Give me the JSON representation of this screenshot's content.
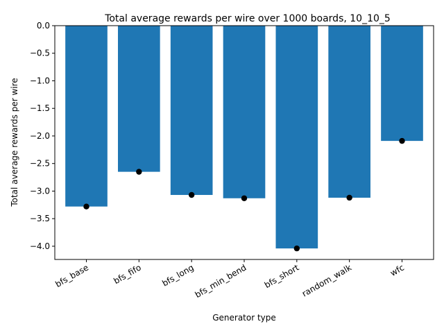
{
  "chart_data": {
    "type": "bar",
    "title": "Total average rewards per wire over 1000 boards, 10_10_5",
    "xlabel": "Generator type",
    "ylabel": "Total average rewards per wire",
    "categories": [
      "bfs_base",
      "bfs_fifo",
      "bfs_long",
      "bfs_min_bend",
      "bfs_short",
      "random_walk",
      "wfc"
    ],
    "values": [
      -3.28,
      -2.65,
      -3.07,
      -3.13,
      -4.04,
      -3.12,
      -2.09
    ],
    "markers": [
      -3.28,
      -2.65,
      -3.07,
      -3.13,
      -4.04,
      -3.12,
      -2.09
    ],
    "ylim": [
      -4.24,
      0.0
    ],
    "yticks": [
      0.0,
      -0.5,
      -1.0,
      -1.5,
      -2.0,
      -2.5,
      -3.0,
      -3.5,
      -4.0
    ],
    "ytick_labels": [
      "0.0",
      "−0.5",
      "−1.0",
      "−1.5",
      "−2.0",
      "−2.5",
      "−3.0",
      "−3.5",
      "−4.0"
    ],
    "grid": false,
    "legend": "none",
    "bar_color": "#1f77b4",
    "marker_color": "#000000"
  }
}
